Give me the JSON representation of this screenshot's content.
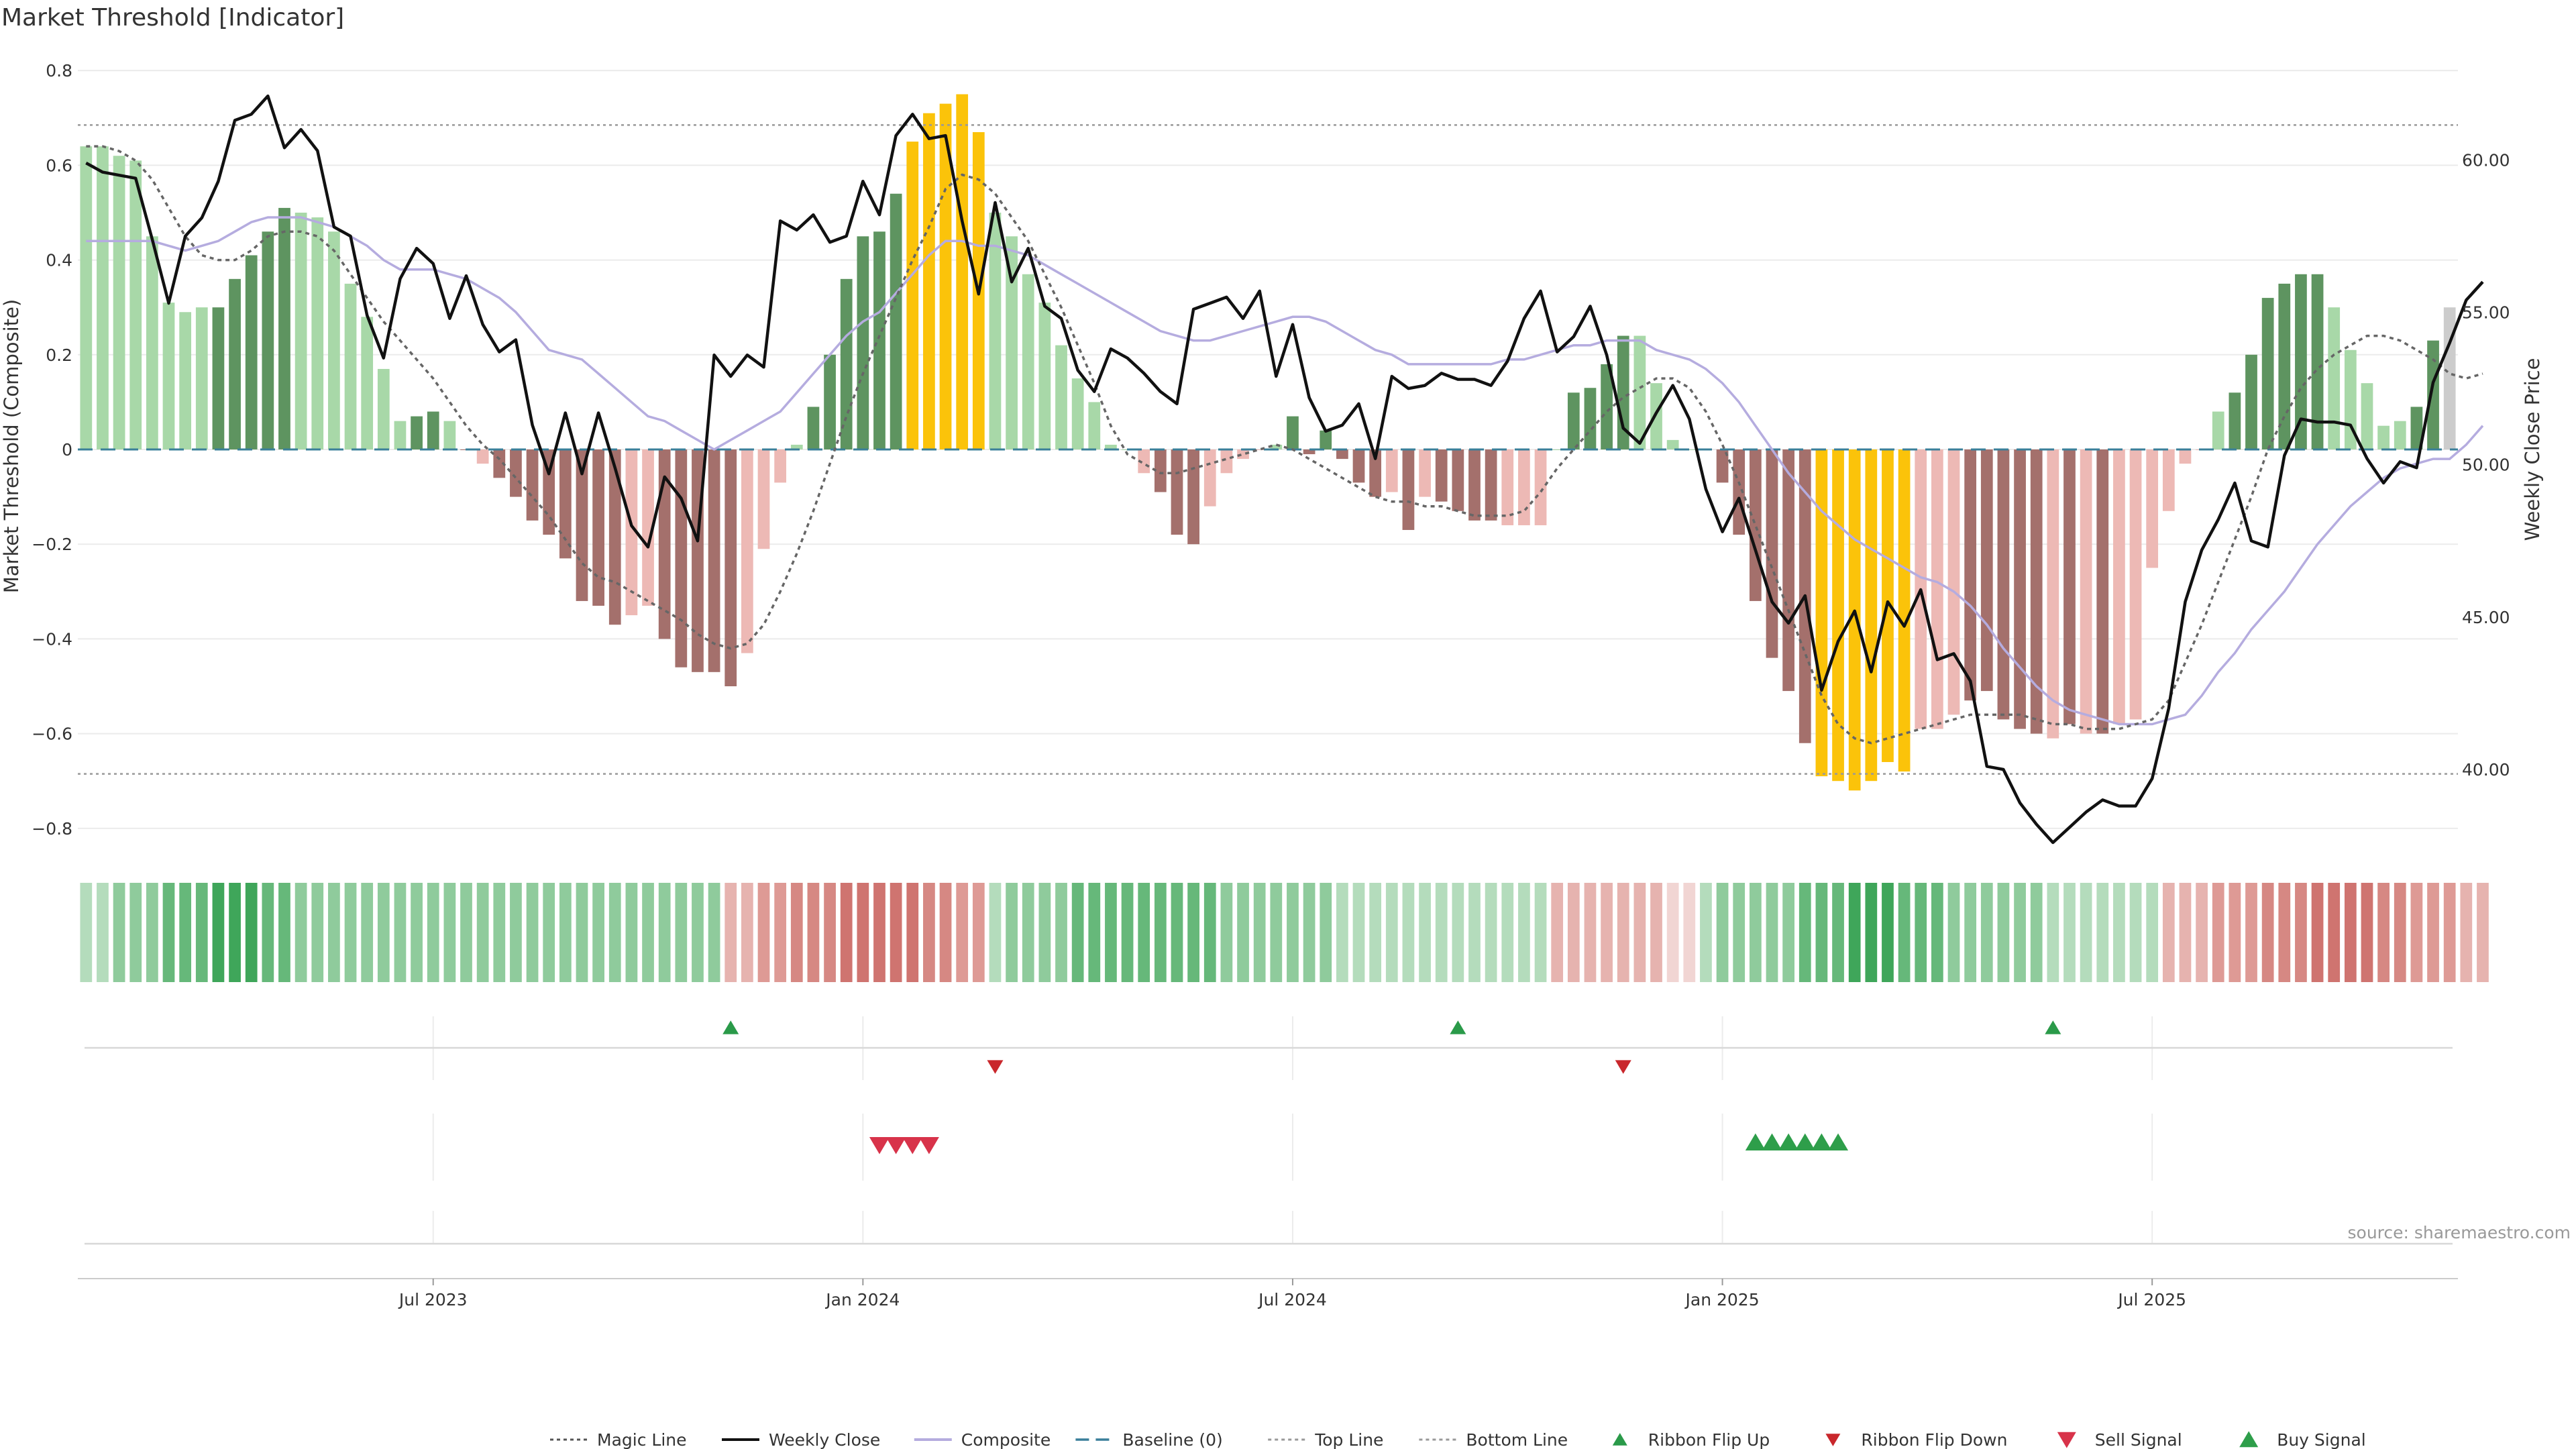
{
  "chart_data": {
    "type": "bar",
    "title": "Market Threshold [Indicator]",
    "ylabel": "Market Threshold (Composite)",
    "y2label": "Weekly Close Price",
    "ylim": [
      -0.83,
      0.83
    ],
    "y2lim": [
      37.6,
      63.4
    ],
    "yticks": [
      {
        "label": "0.8",
        "v": 0.8
      },
      {
        "label": "0.6",
        "v": 0.6
      },
      {
        "label": "0.4",
        "v": 0.4
      },
      {
        "label": "0.2",
        "v": 0.2
      },
      {
        "label": "0",
        "v": 0
      },
      {
        "label": "−0.2",
        "v": -0.2
      },
      {
        "label": "−0.4",
        "v": -0.4
      },
      {
        "label": "−0.6",
        "v": -0.6
      },
      {
        "label": "−0.8",
        "v": -0.8
      }
    ],
    "y2ticks": [
      {
        "label": "60.00",
        "v": 60
      },
      {
        "label": "55.00",
        "v": 55
      },
      {
        "label": "50.00",
        "v": 50
      },
      {
        "label": "45.00",
        "v": 45
      },
      {
        "label": "40.00",
        "v": 40
      }
    ],
    "xticks": [
      {
        "label": "Jul 2023",
        "i": 21
      },
      {
        "label": "Jan 2024",
        "i": 47
      },
      {
        "label": "Jul 2024",
        "i": 73
      },
      {
        "label": "Jan 2025",
        "i": 99
      },
      {
        "label": "Jul 2025",
        "i": 125
      }
    ],
    "top_line": 0.685,
    "bottom_line": -0.685,
    "composite": [
      0.64,
      0.64,
      0.62,
      0.61,
      0.45,
      0.31,
      0.29,
      0.3,
      0.3,
      0.36,
      0.41,
      0.46,
      0.51,
      0.5,
      0.49,
      0.46,
      0.35,
      0.28,
      0.17,
      0.06,
      0.07,
      0.08,
      0.06,
      0,
      -0.03,
      -0.06,
      -0.1,
      -0.15,
      -0.18,
      -0.23,
      -0.32,
      -0.33,
      -0.37,
      -0.35,
      -0.33,
      -0.4,
      -0.46,
      -0.47,
      -0.47,
      -0.5,
      -0.43,
      -0.21,
      -0.07,
      0.01,
      0.09,
      0.2,
      0.36,
      0.45,
      0.46,
      0.54,
      0.65,
      0.71,
      0.73,
      0.75,
      0.67,
      0.5,
      0.45,
      0.37,
      0.31,
      0.22,
      0.15,
      0.1,
      0.01,
      0,
      -0.05,
      -0.09,
      -0.18,
      -0.2,
      -0.12,
      -0.05,
      -0.02,
      0,
      0.01,
      0.07,
      -0.01,
      0.04,
      -0.02,
      -0.07,
      -0.1,
      -0.09,
      -0.17,
      -0.1,
      -0.11,
      -0.13,
      -0.15,
      -0.15,
      -0.16,
      -0.16,
      -0.16,
      0,
      0.12,
      0.13,
      0.18,
      0.24,
      0.24,
      0.14,
      0.02,
      0,
      0,
      -0.07,
      -0.18,
      -0.32,
      -0.44,
      -0.51,
      -0.62,
      -0.69,
      -0.7,
      -0.72,
      -0.7,
      -0.66,
      -0.68,
      -0.59,
      -0.59,
      -0.56,
      -0.53,
      -0.51,
      -0.57,
      -0.59,
      -0.6,
      -0.61,
      -0.58,
      -0.6,
      -0.6,
      -0.58,
      -0.57,
      -0.25,
      -0.13,
      -0.03,
      0,
      0.08,
      0.12,
      0.2,
      0.32,
      0.35,
      0.37,
      0.37,
      0.3,
      0.21,
      0.14,
      0.05,
      0.06,
      0.09,
      0.23,
      0.3
    ],
    "bar_categories": [
      1,
      1,
      1,
      1,
      1,
      1,
      1,
      1,
      2,
      2,
      2,
      2,
      2,
      1,
      1,
      1,
      1,
      1,
      1,
      1,
      2,
      2,
      1,
      4,
      3,
      4,
      4,
      4,
      4,
      4,
      4,
      4,
      4,
      3,
      3,
      4,
      4,
      4,
      4,
      4,
      3,
      3,
      3,
      1,
      2,
      2,
      2,
      2,
      2,
      2,
      5,
      5,
      5,
      5,
      5,
      1,
      1,
      1,
      1,
      1,
      1,
      1,
      1,
      1,
      3,
      4,
      4,
      4,
      3,
      3,
      3,
      3,
      1,
      2,
      4,
      2,
      4,
      4,
      4,
      3,
      4,
      3,
      4,
      4,
      4,
      4,
      3,
      3,
      3,
      1,
      2,
      2,
      2,
      2,
      1,
      1,
      1,
      1,
      1,
      4,
      4,
      4,
      4,
      4,
      4,
      5,
      5,
      5,
      5,
      5,
      5,
      3,
      3,
      3,
      4,
      4,
      4,
      4,
      4,
      3,
      4,
      3,
      4,
      3,
      3,
      3,
      3,
      3,
      3,
      1,
      2,
      2,
      2,
      2,
      2,
      2,
      1,
      1,
      1,
      1,
      1,
      2,
      2
    ],
    "bar_category_names": [
      "",
      "bull-light",
      "bull-dark",
      "bear-light",
      "bear-dark",
      "extreme"
    ],
    "weekly_close": [
      59.9,
      59.6,
      59.5,
      59.4,
      57.4,
      55.3,
      57.5,
      58.1,
      59.3,
      61.3,
      61.5,
      62.1,
      60.4,
      61,
      60.3,
      57.8,
      57.5,
      54.9,
      53.5,
      56.1,
      57.1,
      56.6,
      54.8,
      56.2,
      54.6,
      53.7,
      54.1,
      51.3,
      49.7,
      51.7,
      49.7,
      51.7,
      49.9,
      48,
      47.3,
      49.6,
      48.9,
      47.5,
      53.6,
      52.9,
      53.6,
      53.2,
      58,
      57.7,
      58.2,
      57.3,
      57.5,
      59.3,
      58.2,
      60.8,
      61.5,
      60.7,
      60.8,
      58,
      55.6,
      58.6,
      56,
      57.1,
      55.2,
      54.8,
      53.1,
      52.4,
      53.8,
      53.5,
      53,
      52.4,
      52,
      55.1,
      55.3,
      55.5,
      54.8,
      55.7,
      52.9,
      54.6,
      52.2,
      51.1,
      51.3,
      52,
      50.2,
      52.9,
      52.5,
      52.6,
      53,
      52.8,
      52.8,
      52.6,
      53.4,
      54.8,
      55.7,
      53.7,
      54.2,
      55.2,
      53.6,
      51.2,
      50.7,
      51.7,
      52.6,
      51.5,
      49.2,
      47.8,
      48.9,
      47.2,
      45.5,
      44.8,
      45.7,
      42.6,
      44.2,
      45.2,
      43.2,
      45.5,
      44.7,
      45.9,
      43.6,
      43.8,
      42.9,
      40.1,
      40,
      38.9,
      38.2,
      37.6,
      38.1,
      38.6,
      39,
      38.8,
      38.8,
      39.7,
      42,
      45.5,
      47.2,
      48.2,
      49.4,
      47.5,
      47.3,
      50.3,
      51.5,
      51.4,
      51.4,
      51.3,
      50.2,
      49.4,
      50.1,
      49.9,
      52.7,
      54,
      55.4,
      56
    ],
    "composite_line": [
      0.44,
      0.44,
      0.44,
      0.44,
      0.44,
      0.43,
      0.42,
      0.43,
      0.44,
      0.46,
      0.48,
      0.49,
      0.49,
      0.49,
      0.48,
      0.47,
      0.45,
      0.43,
      0.4,
      0.38,
      0.38,
      0.38,
      0.37,
      0.36,
      0.34,
      0.32,
      0.29,
      0.25,
      0.21,
      0.2,
      0.19,
      0.16,
      0.13,
      0.1,
      0.07,
      0.06,
      0.04,
      0.02,
      0.0,
      0.02,
      0.04,
      0.06,
      0.08,
      0.12,
      0.16,
      0.2,
      0.24,
      0.27,
      0.29,
      0.33,
      0.37,
      0.41,
      0.44,
      0.44,
      0.43,
      0.43,
      0.42,
      0.41,
      0.39,
      0.37,
      0.35,
      0.33,
      0.31,
      0.29,
      0.27,
      0.25,
      0.24,
      0.23,
      0.23,
      0.24,
      0.25,
      0.26,
      0.27,
      0.28,
      0.28,
      0.27,
      0.25,
      0.23,
      0.21,
      0.2,
      0.18,
      0.18,
      0.18,
      0.18,
      0.18,
      0.18,
      0.19,
      0.19,
      0.2,
      0.21,
      0.22,
      0.22,
      0.23,
      0.23,
      0.23,
      0.21,
      0.2,
      0.19,
      0.17,
      0.14,
      0.1,
      0.05,
      0.0,
      -0.05,
      -0.09,
      -0.13,
      -0.16,
      -0.19,
      -0.21,
      -0.23,
      -0.25,
      -0.27,
      -0.28,
      -0.3,
      -0.33,
      -0.37,
      -0.42,
      -0.46,
      -0.5,
      -0.53,
      -0.55,
      -0.56,
      -0.57,
      -0.58,
      -0.58,
      -0.58,
      -0.57,
      -0.56,
      -0.52,
      -0.47,
      -0.43,
      -0.38,
      -0.34,
      -0.3,
      -0.25,
      -0.2,
      -0.16,
      -0.12,
      -0.09,
      -0.06,
      -0.04,
      -0.03,
      -0.02,
      -0.02,
      0.01,
      0.05
    ],
    "magic_line": [
      0.64,
      0.64,
      0.63,
      0.61,
      0.57,
      0.51,
      0.45,
      0.41,
      0.4,
      0.4,
      0.42,
      0.45,
      0.46,
      0.46,
      0.45,
      0.42,
      0.37,
      0.32,
      0.27,
      0.23,
      0.19,
      0.15,
      0.1,
      0.05,
      0.01,
      -0.02,
      -0.06,
      -0.1,
      -0.14,
      -0.19,
      -0.24,
      -0.27,
      -0.28,
      -0.3,
      -0.32,
      -0.34,
      -0.36,
      -0.39,
      -0.41,
      -0.42,
      -0.41,
      -0.37,
      -0.3,
      -0.22,
      -0.13,
      -0.03,
      0.07,
      0.16,
      0.24,
      0.32,
      0.4,
      0.47,
      0.55,
      0.58,
      0.57,
      0.54,
      0.49,
      0.44,
      0.37,
      0.3,
      0.22,
      0.14,
      0.05,
      -0.01,
      -0.03,
      -0.05,
      -0.05,
      -0.04,
      -0.03,
      -0.02,
      -0.01,
      0.0,
      0.01,
      0.0,
      -0.02,
      -0.04,
      -0.06,
      -0.08,
      -0.1,
      -0.11,
      -0.11,
      -0.12,
      -0.12,
      -0.13,
      -0.14,
      -0.14,
      -0.14,
      -0.13,
      -0.09,
      -0.04,
      0.0,
      0.04,
      0.08,
      0.11,
      0.13,
      0.15,
      0.15,
      0.13,
      0.08,
      0.01,
      -0.07,
      -0.16,
      -0.25,
      -0.34,
      -0.43,
      -0.52,
      -0.58,
      -0.61,
      -0.62,
      -0.61,
      -0.6,
      -0.59,
      -0.58,
      -0.57,
      -0.56,
      -0.56,
      -0.56,
      -0.56,
      -0.57,
      -0.58,
      -0.58,
      -0.59,
      -0.59,
      -0.59,
      -0.58,
      -0.57,
      -0.53,
      -0.45,
      -0.37,
      -0.28,
      -0.19,
      -0.1,
      0.0,
      0.07,
      0.13,
      0.17,
      0.2,
      0.22,
      0.24,
      0.24,
      0.23,
      0.21,
      0.19,
      0.16,
      0.15,
      0.16
    ],
    "ribbon": [
      2,
      2,
      3,
      3,
      3,
      4,
      4,
      4,
      5,
      5,
      5,
      4,
      4,
      3,
      3,
      3,
      3,
      3,
      3,
      3,
      3,
      3,
      3,
      3,
      3,
      3,
      3,
      3,
      3,
      3,
      3,
      3,
      3,
      3,
      3,
      3,
      3,
      3,
      3,
      -2,
      -2,
      -3,
      -3,
      -4,
      -4,
      -4,
      -5,
      -5,
      -5,
      -5,
      -5,
      -4,
      -4,
      -3,
      -3,
      2,
      3,
      3,
      3,
      3,
      4,
      4,
      4,
      4,
      4,
      4,
      4,
      4,
      4,
      3,
      3,
      3,
      3,
      3,
      3,
      3,
      2,
      2,
      2,
      2,
      2,
      2,
      2,
      2,
      2,
      2,
      2,
      2,
      2,
      -2,
      -2,
      -2,
      -2,
      -2,
      -2,
      -2,
      -1,
      -1,
      2,
      3,
      3,
      3,
      3,
      3,
      4,
      4,
      4,
      5,
      5,
      5,
      4,
      4,
      4,
      3,
      3,
      3,
      3,
      3,
      3,
      2,
      2,
      2,
      2,
      2,
      2,
      2,
      -2,
      -2,
      -2,
      -3,
      -3,
      -3,
      -4,
      -4,
      -4,
      -5,
      -5,
      -5,
      -5,
      -4,
      -4,
      -3,
      -3,
      -3,
      -2,
      -2
    ],
    "ribbon_flip_up": [
      39,
      83,
      119
    ],
    "ribbon_flip_down": [
      55,
      93
    ],
    "sell_signal": [
      48,
      49,
      50,
      51
    ],
    "buy_signal": [
      101,
      102,
      103,
      104,
      105,
      106
    ],
    "colors": {
      "bull-light": "#a8d8a8",
      "bull-dark": "#5e9460",
      "bear-light": "#edb9b5",
      "bear-dark": "#a4706c",
      "extreme": "#fbc30a",
      "weekly_close": "#111111",
      "composite_line": "#b5acdf",
      "magic_line": "#666666",
      "baseline": "#3a7f9a",
      "ribbon_up": "#3fa65a",
      "ribbon_down": "#cf7470",
      "flip_up": "#2a9a49",
      "flip_down": "#c9272c",
      "sell": "#d8334a",
      "buy": "#2e9e4a"
    },
    "legend": [
      {
        "label": "Magic Line",
        "kind": "dotted",
        "color": "#555555"
      },
      {
        "label": "Weekly Close",
        "kind": "solid",
        "color": "#111111"
      },
      {
        "label": "Composite",
        "kind": "solid",
        "color": "#b5acdf"
      },
      {
        "label": "Baseline (0)",
        "kind": "dashed",
        "color": "#3a7f9a"
      },
      {
        "label": "Top Line",
        "kind": "dotted",
        "color": "#999999"
      },
      {
        "label": "Bottom Line",
        "kind": "dotted",
        "color": "#999999"
      },
      {
        "label": "Ribbon Flip Up",
        "kind": "tri-up",
        "color": "#2a9a49"
      },
      {
        "label": "Ribbon Flip Down",
        "kind": "tri-down",
        "color": "#c9272c"
      },
      {
        "label": "Sell Signal",
        "kind": "tri-down-lg",
        "color": "#d8334a"
      },
      {
        "label": "Buy Signal",
        "kind": "tri-up-lg",
        "color": "#2e9e4a"
      }
    ],
    "source": "source: sharemaestro.com"
  }
}
